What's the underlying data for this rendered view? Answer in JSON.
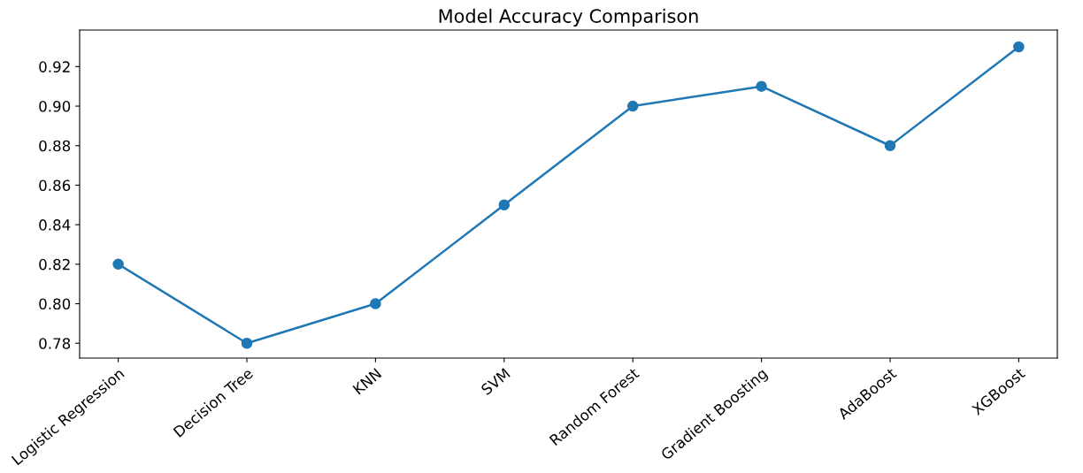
{
  "chart_data": {
    "type": "line",
    "title": "Model Accuracy Comparison",
    "categories": [
      "Logistic Regression",
      "Decision Tree",
      "KNN",
      "SVM",
      "Random Forest",
      "Gradient Boosting",
      "AdaBoost",
      "XGBoost"
    ],
    "series": [
      {
        "color": "#1f77b4",
        "values": [
          0.82,
          0.78,
          0.8,
          0.85,
          0.9,
          0.91,
          0.88,
          0.93
        ]
      }
    ],
    "ylim": [
      0.7725,
      0.9385
    ],
    "yticks": [
      {
        "value": 0.78,
        "label": "0.78"
      },
      {
        "value": 0.8,
        "label": "0.80"
      },
      {
        "value": 0.82,
        "label": "0.82"
      },
      {
        "value": 0.84,
        "label": "0.84"
      },
      {
        "value": 0.86,
        "label": "0.86"
      },
      {
        "value": 0.88,
        "label": "0.88"
      },
      {
        "value": 0.9,
        "label": "0.90"
      },
      {
        "value": 0.92,
        "label": "0.92"
      }
    ],
    "marker": "circle",
    "line_style": "solid",
    "grid": false,
    "legend": false
  }
}
